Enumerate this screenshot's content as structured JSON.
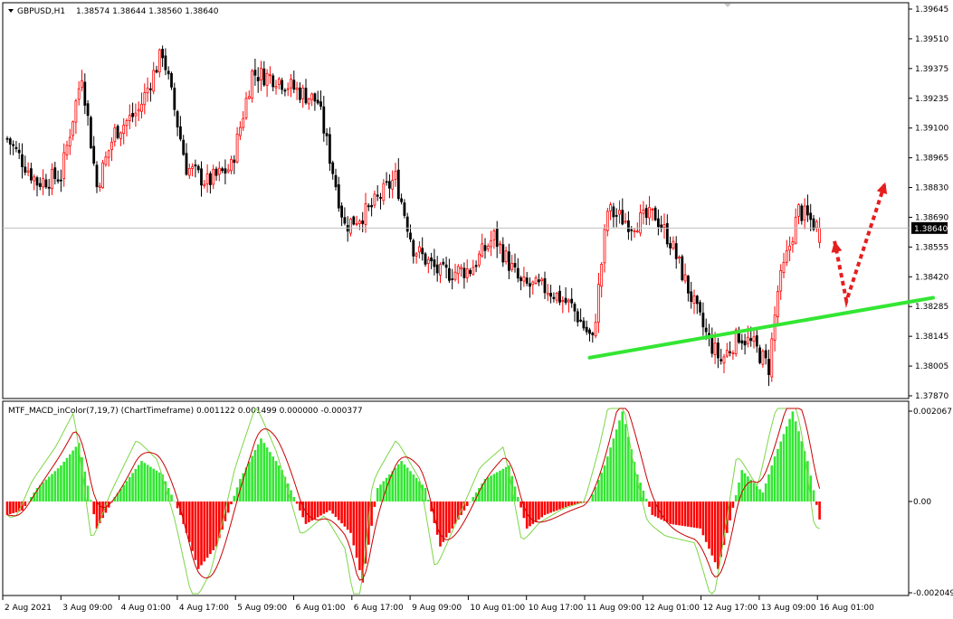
{
  "colors": {
    "bull": "#ff0000",
    "bear": "#000000",
    "trendline": "#33e633",
    "arrow": "#e61e1e",
    "hist_pos": "#33e633",
    "hist_neg": "#ff0000",
    "macd_line": "#7dd648",
    "signal_line": "#c80000",
    "grid": "#c0c0c0"
  },
  "price_panel": {
    "symbol_label": "GBPUSD,H1",
    "ohlc_label": "1.38574 1.38644 1.38560 1.38640",
    "dropdown_icon": "triangle-down-icon",
    "y_ticks": [
      "1.39645",
      "1.39510",
      "1.39375",
      "1.39235",
      "1.39100",
      "1.38965",
      "1.38830",
      "1.38690",
      "1.38555",
      "1.38420",
      "1.38285",
      "1.38145",
      "1.38005",
      "1.37870"
    ],
    "current_price": "1.38640"
  },
  "indicator_panel": {
    "title": "MTF_MACD_inColor(7,19,7) (ChartTimeframe) 0.001122 0.001499 0.000000 -0.000377",
    "y_ticks": [
      "0.002067",
      "0.00",
      "-0.002049"
    ]
  },
  "x_ticks": [
    "2 Aug 2021",
    "3 Aug 09:00",
    "4 Aug 01:00",
    "4 Aug 17:00",
    "5 Aug 09:00",
    "6 Aug 01:00",
    "6 Aug 17:00",
    "9 Aug 09:00",
    "10 Aug 01:00",
    "10 Aug 17:00",
    "11 Aug 09:00",
    "12 Aug 01:00",
    "12 Aug 17:00",
    "13 Aug 09:00",
    "16 Aug 01:00"
  ],
  "chart_data": [
    {
      "type": "candlestick",
      "symbol": "GBPUSD",
      "timeframe": "H1",
      "ylim": [
        1.3787,
        1.39645
      ],
      "last": {
        "open": 1.38574,
        "high": 1.38644,
        "low": 1.3856,
        "close": 1.3864
      },
      "close_path": [
        {
          "t": 0,
          "close": 1.3905
        },
        {
          "t": 10,
          "close": 1.3885
        },
        {
          "t": 18,
          "close": 1.3888
        },
        {
          "t": 25,
          "close": 1.3935
        },
        {
          "t": 30,
          "close": 1.3883
        },
        {
          "t": 36,
          "close": 1.3908
        },
        {
          "t": 44,
          "close": 1.3918
        },
        {
          "t": 52,
          "close": 1.3945
        },
        {
          "t": 60,
          "close": 1.3892
        },
        {
          "t": 67,
          "close": 1.3885
        },
        {
          "t": 75,
          "close": 1.3892
        },
        {
          "t": 82,
          "close": 1.3935
        },
        {
          "t": 90,
          "close": 1.3933
        },
        {
          "t": 96,
          "close": 1.3928
        },
        {
          "t": 104,
          "close": 1.3922
        },
        {
          "t": 113,
          "close": 1.3865
        },
        {
          "t": 121,
          "close": 1.3872
        },
        {
          "t": 130,
          "close": 1.3887
        },
        {
          "t": 136,
          "close": 1.3855
        },
        {
          "t": 145,
          "close": 1.3843
        },
        {
          "t": 155,
          "close": 1.3845
        },
        {
          "t": 163,
          "close": 1.386
        },
        {
          "t": 172,
          "close": 1.3838
        },
        {
          "t": 181,
          "close": 1.3836
        },
        {
          "t": 189,
          "close": 1.3828
        },
        {
          "t": 196,
          "close": 1.3812
        },
        {
          "t": 201,
          "close": 1.3872
        },
        {
          "t": 209,
          "close": 1.3866
        },
        {
          "t": 217,
          "close": 1.387
        },
        {
          "t": 222,
          "close": 1.3858
        },
        {
          "t": 231,
          "close": 1.3825
        },
        {
          "t": 235,
          "close": 1.3812
        },
        {
          "t": 239,
          "close": 1.3803
        },
        {
          "t": 245,
          "close": 1.3815
        },
        {
          "t": 250,
          "close": 1.381
        },
        {
          "t": 255,
          "close": 1.38
        },
        {
          "t": 258,
          "close": 1.3835
        },
        {
          "t": 265,
          "close": 1.3872
        },
        {
          "t": 272,
          "close": 1.3864
        }
      ],
      "annotations": [
        {
          "kind": "trendline",
          "from": {
            "t": 195,
            "price": 1.38045
          },
          "to": {
            "t": 310,
            "price": 1.3832
          }
        },
        {
          "kind": "dotted-arrow-path",
          "points": [
            {
              "t": 277,
              "price": 1.3858
            },
            {
              "t": 281,
              "price": 1.38305
            },
            {
              "t": 294,
              "price": 1.3885
            }
          ]
        }
      ]
    },
    {
      "type": "macd-histogram",
      "name": "MTF_MACD_inColor(7,19,7)",
      "values_label": [
        0.001122,
        0.001499,
        0.0,
        -0.000377
      ],
      "ylim": [
        -0.002049,
        0.002067
      ],
      "histogram_path": [
        {
          "t": 0,
          "v": -0.0003
        },
        {
          "t": 5,
          "v": -0.0002
        },
        {
          "t": 10,
          "v": 0.0003
        },
        {
          "t": 18,
          "v": 0.0008
        },
        {
          "t": 24,
          "v": 0.0013
        },
        {
          "t": 30,
          "v": -0.0006
        },
        {
          "t": 36,
          "v": 0.0001
        },
        {
          "t": 45,
          "v": 0.0009
        },
        {
          "t": 52,
          "v": 0.0006
        },
        {
          "t": 58,
          "v": -0.0003
        },
        {
          "t": 64,
          "v": -0.0015
        },
        {
          "t": 70,
          "v": -0.001
        },
        {
          "t": 78,
          "v": 0.0005
        },
        {
          "t": 85,
          "v": 0.0014
        },
        {
          "t": 92,
          "v": 0.0007
        },
        {
          "t": 100,
          "v": -0.0005
        },
        {
          "t": 108,
          "v": -0.0002
        },
        {
          "t": 115,
          "v": -0.0007
        },
        {
          "t": 119,
          "v": -0.0018
        },
        {
          "t": 124,
          "v": 0.0003
        },
        {
          "t": 132,
          "v": 0.0009
        },
        {
          "t": 140,
          "v": 0.0003
        },
        {
          "t": 145,
          "v": -0.001
        },
        {
          "t": 152,
          "v": -0.0003
        },
        {
          "t": 160,
          "v": 0.0005
        },
        {
          "t": 168,
          "v": 0.0008
        },
        {
          "t": 174,
          "v": -0.0006
        },
        {
          "t": 180,
          "v": -0.0003
        },
        {
          "t": 188,
          "v": -0.0001
        },
        {
          "t": 195,
          "v": 0.0
        },
        {
          "t": 200,
          "v": 0.0008
        },
        {
          "t": 206,
          "v": 0.002
        },
        {
          "t": 211,
          "v": 0.0006
        },
        {
          "t": 216,
          "v": -0.0003
        },
        {
          "t": 222,
          "v": -0.0005
        },
        {
          "t": 232,
          "v": -0.0006
        },
        {
          "t": 238,
          "v": -0.0015
        },
        {
          "t": 241,
          "v": -0.0007
        },
        {
          "t": 246,
          "v": 0.0007
        },
        {
          "t": 253,
          "v": 0.0002
        },
        {
          "t": 257,
          "v": 0.001
        },
        {
          "t": 263,
          "v": 0.002
        },
        {
          "t": 268,
          "v": 0.0009
        },
        {
          "t": 272,
          "v": -0.0004
        }
      ]
    }
  ]
}
